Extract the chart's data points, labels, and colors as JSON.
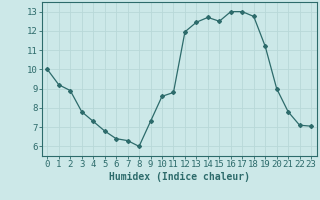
{
  "x": [
    0,
    1,
    2,
    3,
    4,
    5,
    6,
    7,
    8,
    9,
    10,
    11,
    12,
    13,
    14,
    15,
    16,
    17,
    18,
    19,
    20,
    21,
    22,
    23
  ],
  "y": [
    10,
    9.2,
    8.9,
    7.8,
    7.3,
    6.8,
    6.4,
    6.3,
    6.0,
    7.3,
    8.6,
    8.8,
    11.95,
    12.45,
    12.7,
    12.5,
    13.0,
    13.0,
    12.75,
    11.2,
    9.0,
    7.8,
    7.1,
    7.05
  ],
  "line_color": "#2d6b6b",
  "marker": "D",
  "marker_size": 2.0,
  "bg_color": "#cce8e8",
  "grid_color": "#b8d8d8",
  "xlabel": "Humidex (Indice chaleur)",
  "xlabel_fontsize": 7.0,
  "tick_fontsize": 6.5,
  "ylim": [
    5.5,
    13.5
  ],
  "xlim": [
    -0.5,
    23.5
  ],
  "yticks": [
    6,
    7,
    8,
    9,
    10,
    11,
    12,
    13
  ],
  "xticks": [
    0,
    1,
    2,
    3,
    4,
    5,
    6,
    7,
    8,
    9,
    10,
    11,
    12,
    13,
    14,
    15,
    16,
    17,
    18,
    19,
    20,
    21,
    22,
    23
  ],
  "spine_color": "#2d6b6b",
  "tick_color": "#2d6b6b",
  "label_color": "#2d6b6b"
}
